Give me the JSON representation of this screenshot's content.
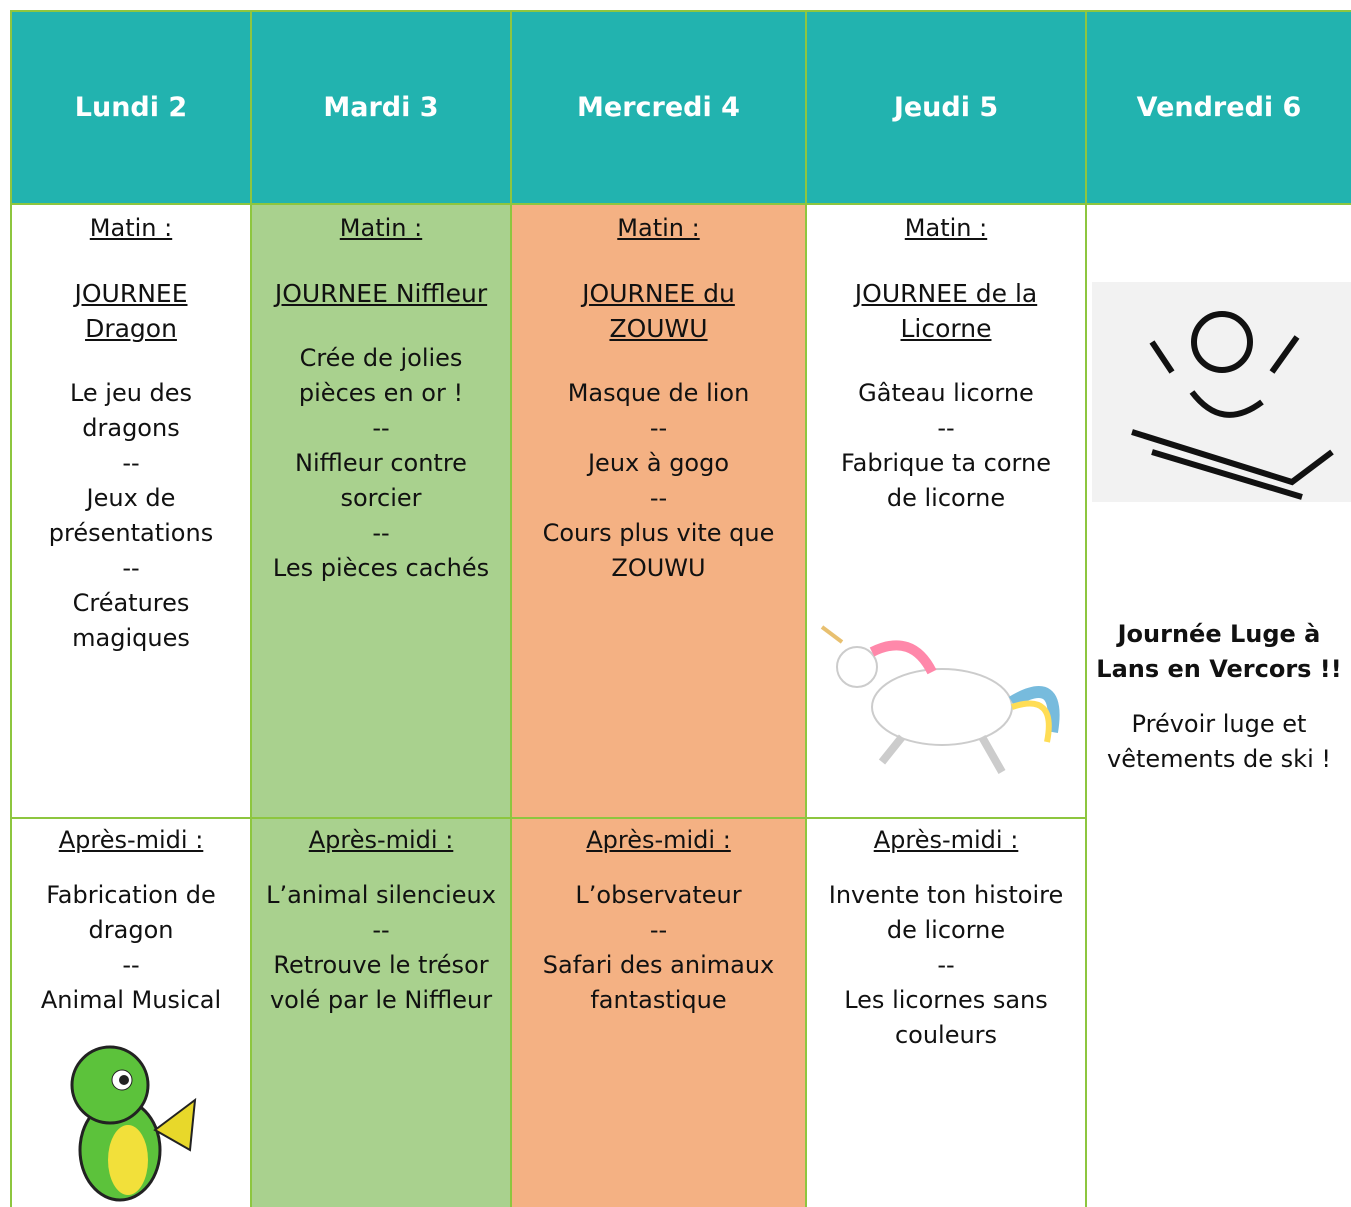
{
  "header": {
    "days": [
      "Lundi 2",
      "Mardi 3",
      "Mercredi 4",
      "Jeudi 5",
      "Vendredi 6"
    ]
  },
  "morning": [
    {
      "heading": "Matin :",
      "theme": "JOURNEE\nDragon",
      "items": [
        "Le jeu des\ndragons",
        "--",
        "Jeux de\nprésentations",
        "--",
        "Créatures\nmagiques"
      ]
    },
    {
      "heading": "Matin :",
      "theme": "JOURNEE Niffleur",
      "items": [
        "Crée de jolies\npièces en or !",
        "--",
        "Niffleur contre\nsorcier",
        "--",
        "Les pièces cachés"
      ]
    },
    {
      "heading": "Matin :",
      "theme": "JOURNEE du\nZOUWU",
      "items": [
        "Masque de lion",
        "--",
        "Jeux à gogo",
        "--",
        "Cours plus vite que\nZOUWU"
      ]
    },
    {
      "heading": "Matin :",
      "theme": "JOURNEE de la\nLicorne",
      "items": [
        "Gâteau licorne",
        "--",
        "Fabrique ta corne\nde licorne"
      ]
    }
  ],
  "afternoon": [
    {
      "heading": "Après-midi :",
      "items": [
        "Fabrication de\ndragon",
        "--",
        "Animal Musical"
      ]
    },
    {
      "heading": "Après-midi :",
      "items": [
        "L’animal silencieux",
        "--",
        "Retrouve le trésor\nvolé par le Niffleur"
      ]
    },
    {
      "heading": "Après-midi :",
      "items": [
        "L’observateur",
        "--",
        "Safari des animaux\nfantastique"
      ]
    },
    {
      "heading": "Après-midi :",
      "items": [
        "Invente ton histoire\nde licorne",
        "--",
        "Les licornes sans\ncouleurs"
      ]
    }
  ],
  "friday": {
    "title": "Journée Luge à\nLans en Vercors !!",
    "note": "Prévoir luge et\nvêtements de ski !"
  }
}
